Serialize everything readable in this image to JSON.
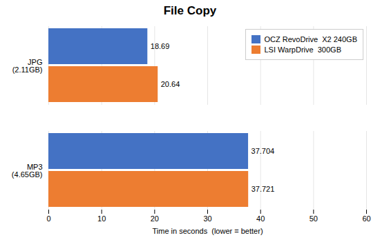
{
  "chart_data": {
    "type": "bar",
    "orientation": "horizontal",
    "title": "File Copy",
    "categories": [
      "JPG\n(2.11GB)",
      "MP3\n(4.65GB)"
    ],
    "series": [
      {
        "name": "OCZ RevoDrive  X2 240GB",
        "color": "#4472C4",
        "values": [
          18.69,
          37.704
        ]
      },
      {
        "name": "LSI WarpDrive  300GB",
        "color": "#ED7D31",
        "values": [
          20.64,
          37.721
        ]
      }
    ],
    "xlabel": "Time in seconds  (lower = better)",
    "xlim": [
      0,
      60
    ],
    "xticks": [
      0,
      10,
      20,
      30,
      40,
      50,
      60
    ],
    "grid": true,
    "legend": "upper right",
    "data_labels": true
  }
}
